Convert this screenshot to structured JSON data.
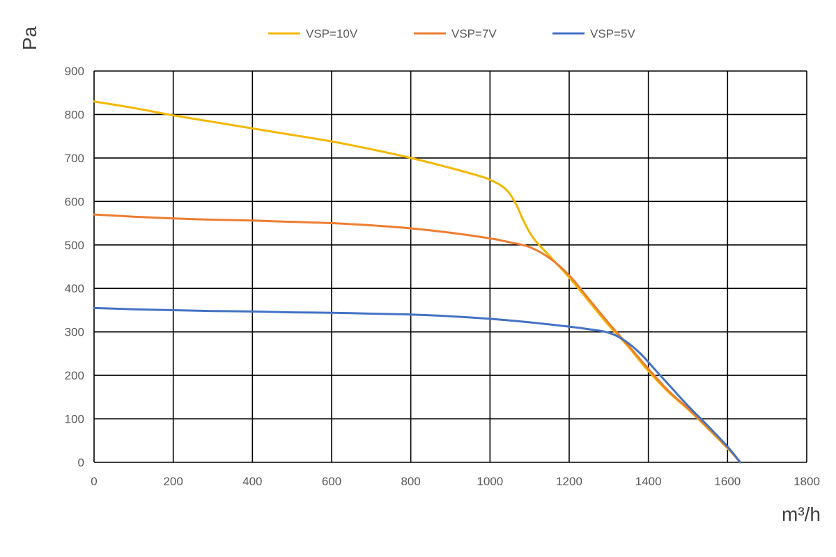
{
  "chart_data": {
    "type": "line",
    "xlabel": "m³/h",
    "ylabel": "Pa",
    "xlim": [
      0,
      1800
    ],
    "ylim": [
      0,
      900
    ],
    "xticks": [
      0,
      200,
      400,
      600,
      800,
      1000,
      1200,
      1400,
      1600,
      1800
    ],
    "yticks": [
      0,
      100,
      200,
      300,
      400,
      500,
      600,
      700,
      800,
      900
    ],
    "grid": true,
    "legend_position": "top",
    "series": [
      {
        "name": "VSP=10V",
        "color": "#F2B800",
        "points": [
          [
            0,
            830
          ],
          [
            100,
            815
          ],
          [
            200,
            798
          ],
          [
            300,
            783
          ],
          [
            400,
            768
          ],
          [
            500,
            753
          ],
          [
            600,
            738
          ],
          [
            700,
            720
          ],
          [
            800,
            700
          ],
          [
            900,
            677
          ],
          [
            960,
            662
          ],
          [
            1000,
            650
          ],
          [
            1040,
            628
          ],
          [
            1065,
            595
          ],
          [
            1085,
            555
          ],
          [
            1110,
            515
          ],
          [
            1150,
            475
          ],
          [
            1200,
            425
          ],
          [
            1250,
            370
          ],
          [
            1300,
            315
          ],
          [
            1350,
            265
          ],
          [
            1400,
            210
          ],
          [
            1450,
            162
          ],
          [
            1500,
            122
          ],
          [
            1550,
            78
          ],
          [
            1600,
            32
          ],
          [
            1632,
            0
          ]
        ]
      },
      {
        "name": "VSP=7V",
        "color": "#ED7D31",
        "points": [
          [
            0,
            570
          ],
          [
            100,
            565
          ],
          [
            200,
            561
          ],
          [
            300,
            558
          ],
          [
            400,
            556
          ],
          [
            500,
            553
          ],
          [
            600,
            550
          ],
          [
            700,
            545
          ],
          [
            800,
            538
          ],
          [
            900,
            528
          ],
          [
            1000,
            515
          ],
          [
            1050,
            506
          ],
          [
            1100,
            495
          ],
          [
            1150,
            470
          ],
          [
            1200,
            430
          ],
          [
            1250,
            375
          ],
          [
            1300,
            320
          ],
          [
            1350,
            268
          ],
          [
            1400,
            215
          ],
          [
            1450,
            165
          ],
          [
            1500,
            124
          ],
          [
            1550,
            80
          ],
          [
            1600,
            34
          ],
          [
            1632,
            0
          ]
        ]
      },
      {
        "name": "VSP=5V",
        "color": "#4472C4",
        "points": [
          [
            0,
            355
          ],
          [
            100,
            352
          ],
          [
            200,
            350
          ],
          [
            300,
            348
          ],
          [
            400,
            347
          ],
          [
            500,
            345
          ],
          [
            600,
            344
          ],
          [
            700,
            342
          ],
          [
            800,
            340
          ],
          [
            900,
            336
          ],
          [
            1000,
            330
          ],
          [
            1100,
            322
          ],
          [
            1200,
            312
          ],
          [
            1250,
            306
          ],
          [
            1300,
            298
          ],
          [
            1340,
            280
          ],
          [
            1380,
            250
          ],
          [
            1420,
            210
          ],
          [
            1460,
            170
          ],
          [
            1500,
            130
          ],
          [
            1550,
            84
          ],
          [
            1600,
            36
          ],
          [
            1632,
            0
          ]
        ]
      }
    ]
  }
}
